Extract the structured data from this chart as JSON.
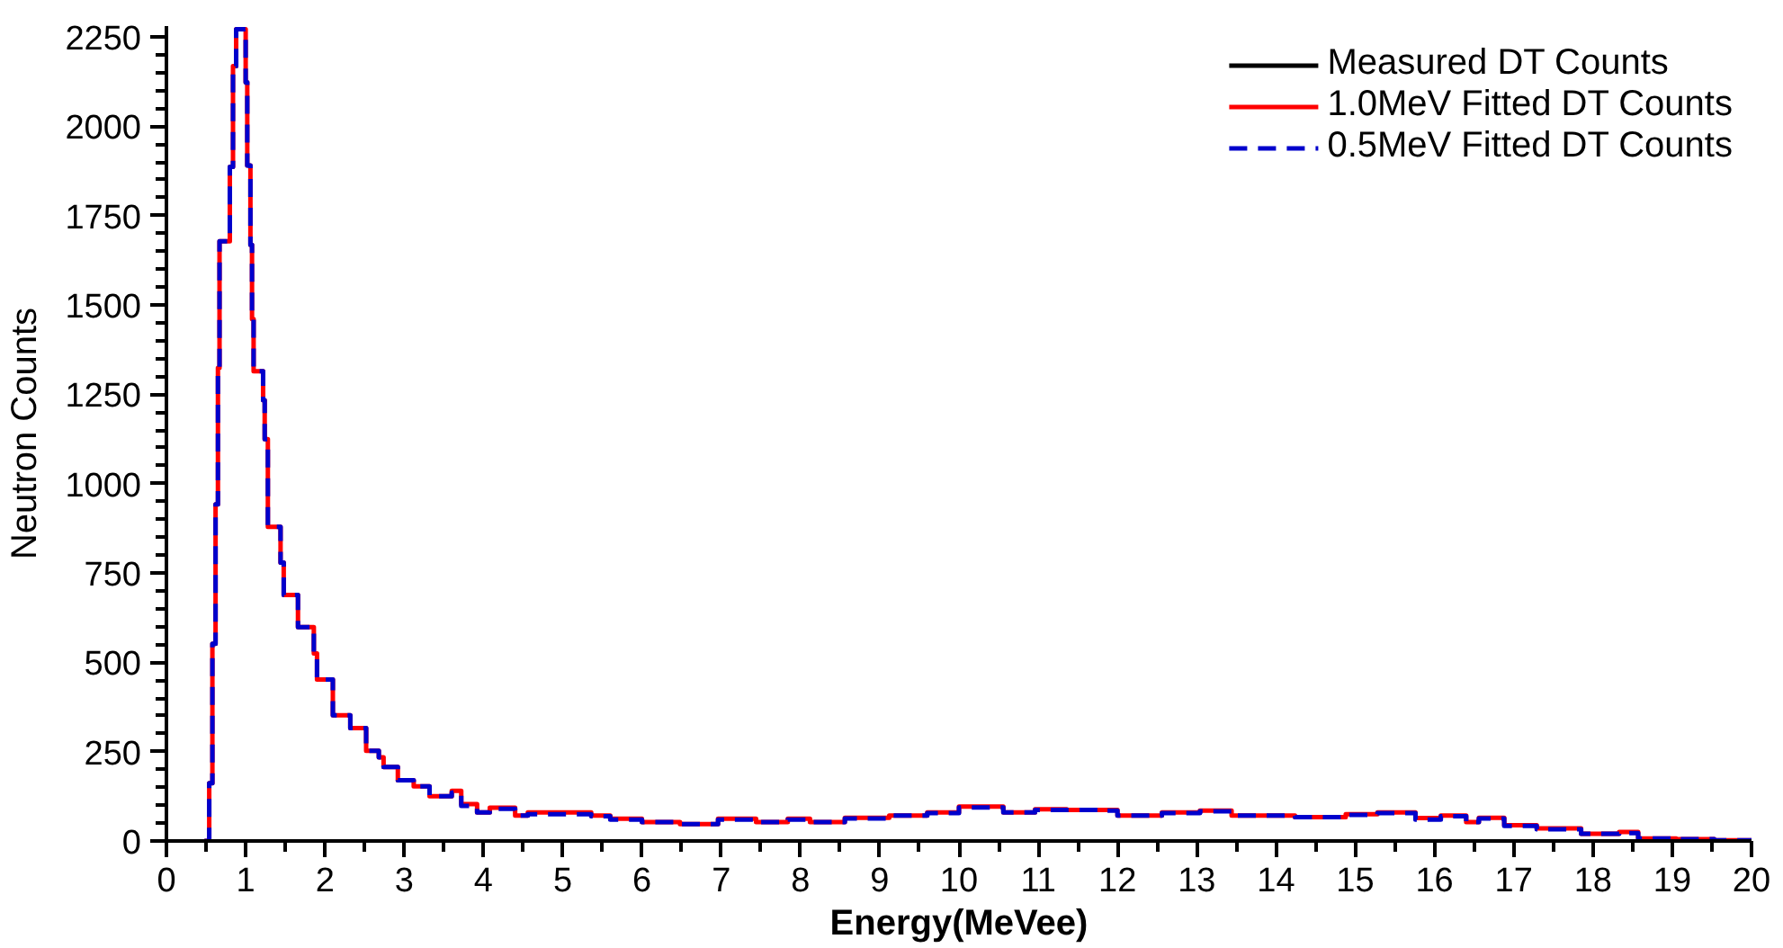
{
  "chart_data": {
    "type": "step",
    "xlabel": "Energy(MeVee)",
    "ylabel": "Neutron Counts",
    "xlim": [
      0,
      20
    ],
    "ylim": [
      0,
      2280
    ],
    "xticks": [
      0,
      {
        "value": 0.5,
        "label": null
      },
      1,
      {
        "value": 1.5,
        "label": null
      },
      2,
      {
        "value": 2.5,
        "label": null
      },
      3,
      {
        "value": 3.5,
        "label": null
      },
      4,
      {
        "value": 4.5,
        "label": null
      },
      5,
      {
        "value": 5.5,
        "label": null
      },
      6,
      {
        "value": 6.5,
        "label": null
      },
      7,
      {
        "value": 7.5,
        "label": null
      },
      8,
      {
        "value": 8.5,
        "label": null
      },
      9,
      {
        "value": 9.5,
        "label": null
      },
      10,
      {
        "value": 10.5,
        "label": null
      },
      11,
      {
        "value": 11.5,
        "label": null
      },
      12,
      {
        "value": 12.5,
        "label": null
      },
      13,
      {
        "value": 13.5,
        "label": null
      },
      14,
      {
        "value": 14.5,
        "label": null
      },
      15,
      {
        "value": 15.5,
        "label": null
      },
      16,
      {
        "value": 16.5,
        "label": null
      },
      17,
      {
        "value": 17.5,
        "label": null
      },
      18,
      {
        "value": 18.5,
        "label": null
      },
      19,
      {
        "value": 19.5,
        "label": null
      },
      20
    ],
    "yticks": [
      0,
      {
        "value": 50,
        "label": null
      },
      {
        "value": 100,
        "label": null
      },
      {
        "value": 150,
        "label": null
      },
      {
        "value": 200,
        "label": null
      },
      250,
      {
        "value": 300,
        "label": null
      },
      {
        "value": 350,
        "label": null
      },
      {
        "value": 400,
        "label": null
      },
      {
        "value": 450,
        "label": null
      },
      500,
      {
        "value": 550,
        "label": null
      },
      {
        "value": 600,
        "label": null
      },
      {
        "value": 650,
        "label": null
      },
      {
        "value": 700,
        "label": null
      },
      750,
      {
        "value": 800,
        "label": null
      },
      {
        "value": 850,
        "label": null
      },
      {
        "value": 900,
        "label": null
      },
      {
        "value": 950,
        "label": null
      },
      1000,
      {
        "value": 1050,
        "label": null
      },
      {
        "value": 1100,
        "label": null
      },
      {
        "value": 1150,
        "label": null
      },
      {
        "value": 1200,
        "label": null
      },
      1250,
      {
        "value": 1300,
        "label": null
      },
      {
        "value": 1350,
        "label": null
      },
      {
        "value": 1400,
        "label": null
      },
      {
        "value": 1450,
        "label": null
      },
      1500,
      {
        "value": 1550,
        "label": null
      },
      {
        "value": 1600,
        "label": null
      },
      {
        "value": 1650,
        "label": null
      },
      {
        "value": 1700,
        "label": null
      },
      1750,
      {
        "value": 1800,
        "label": null
      },
      {
        "value": 1850,
        "label": null
      },
      {
        "value": 1900,
        "label": null
      },
      {
        "value": 1950,
        "label": null
      },
      2000,
      {
        "value": 2050,
        "label": null
      },
      {
        "value": 2100,
        "label": null
      },
      {
        "value": 2150,
        "label": null
      },
      {
        "value": 2200,
        "label": null
      },
      2250
    ],
    "x": [
      0.48,
      0.54,
      0.58,
      0.62,
      0.65,
      0.67,
      0.8,
      0.84,
      0.88,
      1.0,
      1.02,
      1.06,
      1.08,
      1.1,
      1.22,
      1.24,
      1.28,
      1.44,
      1.48,
      1.66,
      1.86,
      1.9,
      2.1,
      2.32,
      2.52,
      2.68,
      2.74,
      2.92,
      3.12,
      3.32,
      3.6,
      3.72,
      3.92,
      4.08,
      4.4,
      4.56,
      5.36,
      5.6,
      6.0,
      6.48,
      6.96,
      7.44,
      7.84,
      8.12,
      8.56,
      9.12,
      9.6,
      10.0,
      10.56,
      10.96,
      11.36,
      11.84,
      12.0,
      12.56,
      13.04,
      13.44,
      14.24,
      14.88,
      15.28,
      15.76,
      16.08,
      16.4,
      16.56,
      16.88,
      17.29,
      17.85,
      18.33,
      18.57,
      19.05,
      19.53,
      20.0
    ],
    "series": [
      {
        "name": "Measured DT Counts",
        "color": "#000000",
        "line_style": "solid",
        "values": [
          null,
          null,
          null,
          null,
          null,
          null,
          null,
          null,
          null,
          null,
          null,
          null,
          null,
          null,
          null,
          null,
          null,
          null,
          null,
          null,
          null,
          null,
          null,
          null,
          null,
          null,
          null,
          null,
          null,
          null,
          null,
          null,
          null,
          null,
          null,
          null,
          null,
          null,
          null,
          null,
          null,
          null,
          null,
          null,
          null,
          null,
          null,
          null,
          null,
          null,
          null,
          null,
          null,
          null,
          null,
          null,
          null,
          null,
          null,
          null,
          null,
          null,
          null,
          null,
          null,
          null,
          null,
          null,
          null,
          null,
          null
        ]
      },
      {
        "name": "1.0MeV Fitted DT Counts",
        "color": "#ff0000",
        "line_style": "solid",
        "values": [
          0,
          162,
          552,
          942,
          1324,
          1678,
          1886,
          2168,
          2271,
          2123,
          1890,
          1668,
          1460,
          1314,
          1233,
          1124,
          879,
          779,
          688,
          598,
          525,
          452,
          352,
          316,
          252,
          234,
          207,
          170,
          153,
          125,
          140,
          103,
          80,
          93,
          71,
          80,
          71,
          62,
          53,
          47,
          62,
          53,
          62,
          53,
          65,
          71,
          80,
          96,
          80,
          89,
          87,
          87,
          71,
          80,
          85,
          71,
          67,
          75,
          80,
          64,
          71,
          53,
          65,
          44,
          35,
          20,
          25,
          7,
          5,
          2,
          0
        ]
      },
      {
        "name": "0.5MeV Fitted DT Counts",
        "color": "#0000cc",
        "line_style": "dashed",
        "values": [
          0,
          162,
          552,
          942,
          1324,
          1678,
          1886,
          2168,
          2271,
          2123,
          1890,
          1668,
          1460,
          1314,
          1233,
          1124,
          879,
          779,
          688,
          598,
          525,
          452,
          352,
          316,
          252,
          234,
          207,
          170,
          153,
          125,
          135,
          98,
          80,
          90,
          71,
          75,
          69,
          60,
          53,
          47,
          60,
          53,
          60,
          53,
          63,
          71,
          78,
          94,
          80,
          87,
          87,
          85,
          71,
          78,
          83,
          71,
          67,
          73,
          78,
          60,
          69,
          53,
          63,
          42,
          33,
          20,
          22,
          7,
          5,
          2,
          0
        ]
      }
    ],
    "legend": "top right",
    "grid": false
  }
}
